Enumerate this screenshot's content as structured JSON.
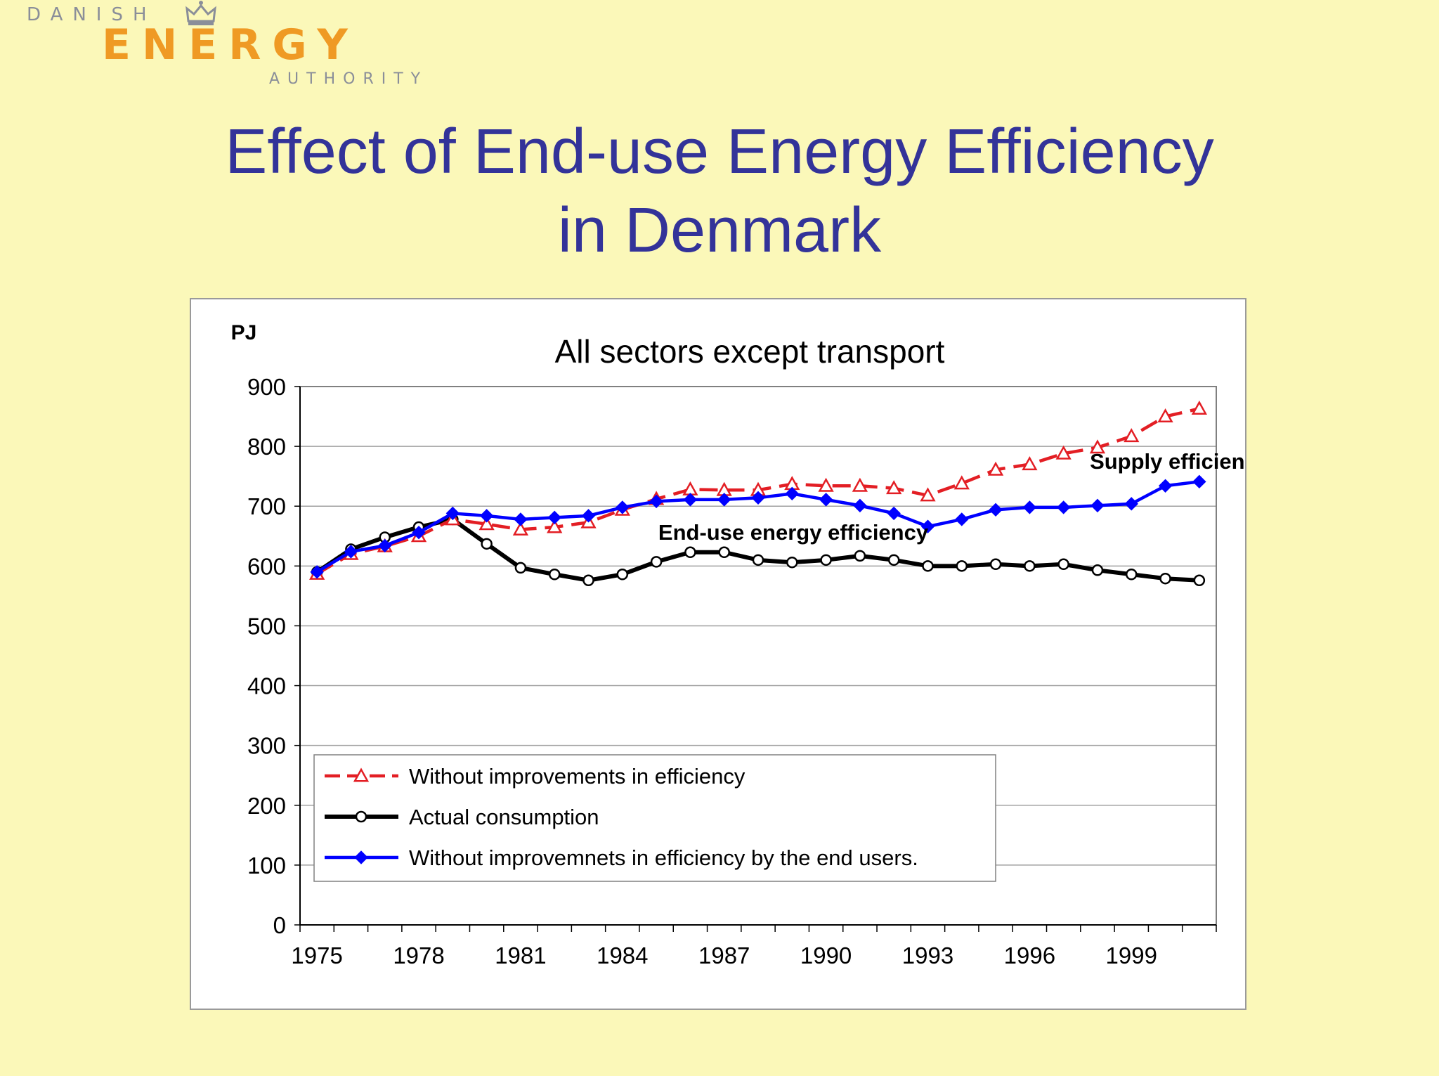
{
  "logo": {
    "line1": "DANISH",
    "line2": "ENERGY",
    "line3": "AUTHORITY",
    "icon": "crown-icon",
    "color_main": "#ef9a24",
    "color_small": "#8a8e99"
  },
  "slide": {
    "title_line1": "Effect of End-use Energy Efficiency",
    "title_line2": "in Denmark",
    "title_color": "#333399",
    "background": "#fbf8b9"
  },
  "chart_data": {
    "type": "line",
    "title": "All sectors except transport",
    "ylabel": "PJ",
    "xlabel": "",
    "ylim": [
      0,
      900
    ],
    "yticks": [
      0,
      100,
      200,
      300,
      400,
      500,
      600,
      700,
      800,
      900
    ],
    "xticks": [
      "1975",
      "1978",
      "1981",
      "1984",
      "1987",
      "1990",
      "1993",
      "1996",
      "1999"
    ],
    "x": [
      1975,
      1976,
      1977,
      1978,
      1979,
      1980,
      1981,
      1982,
      1983,
      1984,
      1985,
      1986,
      1987,
      1988,
      1989,
      1990,
      1991,
      1992,
      1993,
      1994,
      1995,
      1996,
      1997,
      1998,
      1999,
      2000,
      2001
    ],
    "grid": "horizontal",
    "legend_position": "bottom-left",
    "series": [
      {
        "name": "Without improvements in efficiency",
        "color": "#e31e24",
        "style": "dashed",
        "marker": "triangle-open",
        "values": [
          587,
          620,
          633,
          650,
          678,
          670,
          661,
          665,
          673,
          694,
          712,
          728,
          727,
          727,
          737,
          734,
          734,
          730,
          718,
          738,
          761,
          770,
          788,
          798,
          817,
          850,
          863
        ]
      },
      {
        "name": "Actual consumption",
        "color": "#000000",
        "style": "solid",
        "marker": "circle-open",
        "values": [
          590,
          628,
          648,
          665,
          678,
          637,
          597,
          586,
          576,
          586,
          607,
          623,
          623,
          610,
          606,
          610,
          617,
          610,
          600,
          600,
          603,
          600,
          603,
          593,
          586,
          579,
          576
        ]
      },
      {
        "name": "Without improvemnets in efficiency by the end users.",
        "color": "#0000ff",
        "style": "solid",
        "marker": "diamond-filled",
        "values": [
          590,
          624,
          634,
          656,
          688,
          684,
          678,
          681,
          684,
          698,
          708,
          711,
          711,
          714,
          721,
          711,
          701,
          688,
          666,
          678,
          694,
          698,
          698,
          701,
          704,
          734,
          741
        ]
      }
    ],
    "annotations": [
      {
        "text": "Supply efficiency",
        "x": 2000,
        "y": 800
      },
      {
        "text": "End-use energy efficiency",
        "x": 1988,
        "y": 665
      }
    ]
  }
}
